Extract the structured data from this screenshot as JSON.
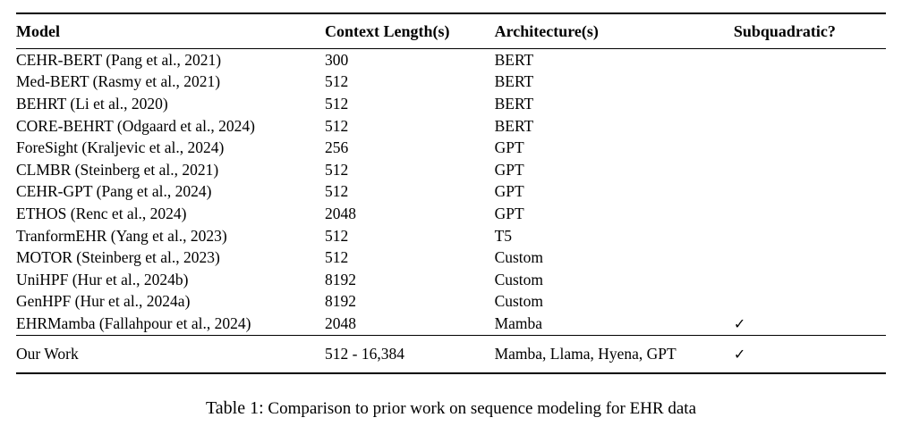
{
  "table": {
    "headers": {
      "model": "Model",
      "context": "Context Length(s)",
      "architecture": "Architecture(s)",
      "subquadratic": "Subquadratic?"
    },
    "rows": [
      {
        "model": "CEHR-BERT (Pang et al., 2021)",
        "context": "300",
        "architecture": "BERT",
        "subquadratic": ""
      },
      {
        "model": "Med-BERT (Rasmy et al., 2021)",
        "context": "512",
        "architecture": "BERT",
        "subquadratic": ""
      },
      {
        "model": "BEHRT (Li et al., 2020)",
        "context": "512",
        "architecture": "BERT",
        "subquadratic": ""
      },
      {
        "model": "CORE-BEHRT (Odgaard et al., 2024)",
        "context": "512",
        "architecture": "BERT",
        "subquadratic": ""
      },
      {
        "model": "ForeSight (Kraljevic et al., 2024)",
        "context": "256",
        "architecture": "GPT",
        "subquadratic": ""
      },
      {
        "model": "CLMBR (Steinberg et al., 2021)",
        "context": "512",
        "architecture": "GPT",
        "subquadratic": ""
      },
      {
        "model": "CEHR-GPT (Pang et al., 2024)",
        "context": "512",
        "architecture": "GPT",
        "subquadratic": ""
      },
      {
        "model": "ETHOS (Renc et al., 2024)",
        "context": "2048",
        "architecture": "GPT",
        "subquadratic": ""
      },
      {
        "model": "TranformEHR (Yang et al., 2023)",
        "context": "512",
        "architecture": "T5",
        "subquadratic": ""
      },
      {
        "model": "MOTOR (Steinberg et al., 2023)",
        "context": "512",
        "architecture": "Custom",
        "subquadratic": ""
      },
      {
        "model": "UniHPF (Hur et al., 2024b)",
        "context": "8192",
        "architecture": "Custom",
        "subquadratic": ""
      },
      {
        "model": "GenHPF (Hur et al., 2024a)",
        "context": "8192",
        "architecture": "Custom",
        "subquadratic": ""
      },
      {
        "model": "EHRMamba (Fallahpour et al., 2024)",
        "context": "2048",
        "architecture": "Mamba",
        "subquadratic": "✓"
      }
    ],
    "our_work": {
      "model": "Our Work",
      "context": "512 - 16,384",
      "architecture": "Mamba, Llama, Hyena, GPT",
      "subquadratic": "✓"
    }
  },
  "caption": {
    "label": "Table 1:",
    "text": " Comparison to prior work on sequence modeling for EHR data"
  }
}
